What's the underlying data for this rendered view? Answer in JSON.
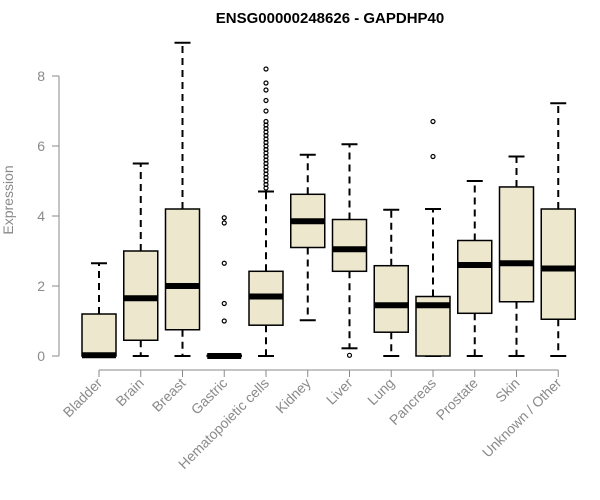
{
  "chart_data": {
    "type": "boxplot",
    "title": "ENSG00000248626 - GAPDHP40",
    "xlabel": "",
    "ylabel": "Expression",
    "ylim": [
      0,
      9
    ],
    "yticks": [
      0,
      2,
      4,
      6,
      8
    ],
    "box_fill": "#ede7cd",
    "box_stroke": "#000000",
    "axis_color": "#8a8a8a",
    "categories": [
      "Bladder",
      "Brain",
      "Breast",
      "Gastric",
      "Hematopoietic cells",
      "Kidney",
      "Liver",
      "Lung",
      "Pancreas",
      "Prostate",
      "Skin",
      "Unknown / Other"
    ],
    "boxes": [
      {
        "name": "Bladder",
        "whisker_low": 0,
        "q1": 0,
        "median": 0.02,
        "q3": 1.2,
        "whisker_high": 2.65,
        "outliers": []
      },
      {
        "name": "Brain",
        "whisker_low": 0,
        "q1": 0.45,
        "median": 1.65,
        "q3": 3.0,
        "whisker_high": 5.5,
        "outliers": []
      },
      {
        "name": "Breast",
        "whisker_low": 0,
        "q1": 0.75,
        "median": 2.0,
        "q3": 4.2,
        "whisker_high": 8.95,
        "outliers": []
      },
      {
        "name": "Gastric",
        "whisker_low": 0,
        "q1": 0,
        "median": 0,
        "q3": 0.02,
        "whisker_high": 0.05,
        "outliers": [
          1.0,
          1.5,
          2.65,
          3.8,
          3.95
        ]
      },
      {
        "name": "Hematopoietic cells",
        "whisker_low": 0,
        "q1": 0.88,
        "median": 1.7,
        "q3": 2.42,
        "whisker_high": 4.7,
        "outliers": [
          4.8,
          4.9,
          5.0,
          5.1,
          5.2,
          5.3,
          5.4,
          5.5,
          5.6,
          5.7,
          5.8,
          5.9,
          6.0,
          6.1,
          6.2,
          6.3,
          6.4,
          6.5,
          6.6,
          6.7,
          7.0,
          7.3,
          7.6,
          7.8,
          8.2
        ]
      },
      {
        "name": "Kidney",
        "whisker_low": 1.02,
        "q1": 3.1,
        "median": 3.85,
        "q3": 4.62,
        "whisker_high": 5.75,
        "outliers": []
      },
      {
        "name": "Liver",
        "whisker_low": 0.22,
        "q1": 2.42,
        "median": 3.05,
        "q3": 3.9,
        "whisker_high": 6.05,
        "outliers": [
          0.02
        ]
      },
      {
        "name": "Lung",
        "whisker_low": 0,
        "q1": 0.68,
        "median": 1.45,
        "q3": 2.58,
        "whisker_high": 4.18,
        "outliers": []
      },
      {
        "name": "Pancreas",
        "whisker_low": 0,
        "q1": 0,
        "median": 1.45,
        "q3": 1.7,
        "whisker_high": 4.2,
        "outliers": [
          5.7,
          6.7
        ]
      },
      {
        "name": "Prostate",
        "whisker_low": 0,
        "q1": 1.22,
        "median": 2.6,
        "q3": 3.3,
        "whisker_high": 5.0,
        "outliers": []
      },
      {
        "name": "Skin",
        "whisker_low": 0,
        "q1": 1.55,
        "median": 2.65,
        "q3": 4.83,
        "whisker_high": 5.7,
        "outliers": []
      },
      {
        "name": "Unknown / Other",
        "whisker_low": 0,
        "q1": 1.05,
        "median": 2.5,
        "q3": 4.2,
        "whisker_high": 7.22,
        "outliers": []
      }
    ]
  }
}
